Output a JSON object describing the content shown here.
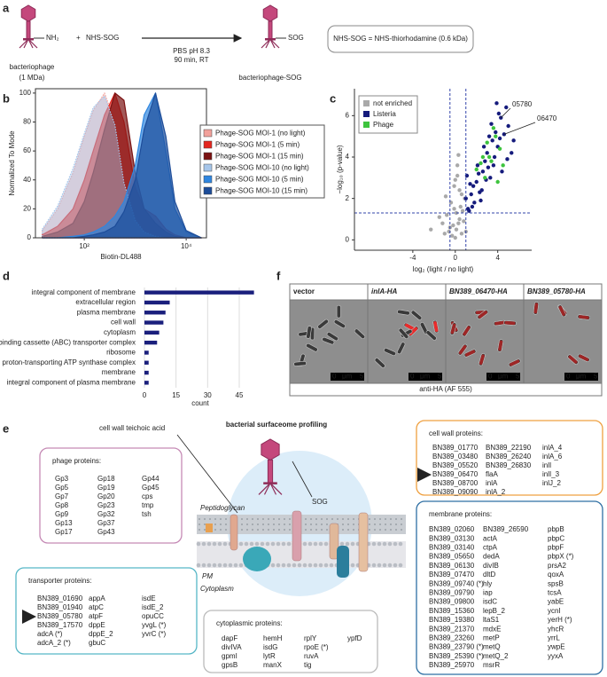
{
  "panel_a": {
    "label": "a",
    "reactant": "bacteriophage",
    "reactant_mass": "(1 MDa)",
    "amine": "NH₂",
    "plus": "+",
    "reagent": "NHS-SOG",
    "conditions": [
      "PBS pH 8.3",
      "90 min, RT"
    ],
    "product": "bacteriophage-SOG",
    "product_group": "SOG",
    "definition": "NHS-SOG  =  NHS-thiorhodamine (0.6 kDa)"
  },
  "panel_labels": {
    "b": "b",
    "c": "c",
    "d": "d",
    "e": "e",
    "f": "f"
  },
  "chart_data": [
    {
      "type": "line",
      "xlabel": "Biotin-DL488",
      "ylabel": "Normalized To Mode",
      "log_x": true,
      "legend": "right",
      "x": [
        15,
        30,
        60,
        100,
        150,
        250,
        400,
        600,
        1000,
        1500,
        2500,
        4000,
        6000,
        10000,
        20000
      ],
      "xlim": [
        11,
        25000
      ],
      "xticks": [
        {
          "value": 100,
          "label": "10²"
        },
        {
          "value": 10000,
          "label": "10⁴"
        }
      ],
      "ylim": [
        0,
        103
      ],
      "yticks": [
        0,
        20,
        40,
        60,
        80,
        100
      ],
      "series": [
        {
          "name": "Phage-SOG MOI-1 (no light)",
          "color": "#f2a19b",
          "dotted": true,
          "values": [
            5,
            20,
            45,
            70,
            88,
            100,
            80,
            40,
            12,
            4,
            1,
            0,
            0,
            0,
            0
          ]
        },
        {
          "name": "Phage-SOG MOI-1 (5 min)",
          "color": "#e4261f",
          "dotted": false,
          "values": [
            2,
            8,
            20,
            40,
            60,
            85,
            100,
            80,
            35,
            20,
            15,
            6,
            2,
            0,
            0
          ]
        },
        {
          "name": "Phage-SOG MOI-1 (15 min)",
          "color": "#7b1212",
          "dotted": false,
          "values": [
            1,
            4,
            10,
            25,
            45,
            75,
            100,
            95,
            45,
            20,
            10,
            4,
            1,
            0,
            0
          ]
        },
        {
          "name": "Phage-SOG MOI-10 (no light)",
          "color": "#a6c6ea",
          "dotted": true,
          "values": [
            6,
            22,
            48,
            72,
            90,
            98,
            78,
            38,
            12,
            4,
            1,
            0,
            0,
            0,
            0
          ]
        },
        {
          "name": "Phage-SOG MOI-10 (5 min)",
          "color": "#2f86e0",
          "dotted": false,
          "values": [
            0,
            0,
            1,
            2,
            4,
            8,
            15,
            25,
            50,
            85,
            100,
            60,
            20,
            4,
            0
          ]
        },
        {
          "name": "Phage-SOG MOI-10 (15 min)",
          "color": "#1d4d9a",
          "dotted": false,
          "values": [
            0,
            0,
            0,
            1,
            2,
            4,
            8,
            18,
            40,
            75,
            100,
            70,
            25,
            5,
            0
          ]
        }
      ]
    },
    {
      "type": "scatter",
      "xlabel": "log₂ (light / no light)",
      "ylabel": "−log₁₀ (p-value)",
      "legend": "upper left",
      "xlim": [
        -9.5,
        7.2
      ],
      "ylim": [
        -0.5,
        7.3
      ],
      "xticks": [
        -4,
        0,
        4
      ],
      "yticks": [
        0,
        2,
        4,
        6
      ],
      "thresholds_x": [
        -0.5,
        1
      ],
      "threshold_y": 1.3,
      "series": [
        {
          "name": "not enriched",
          "color": "#a9a9a9",
          "x": [
            -0.3,
            0.1,
            0.4,
            0.6,
            -0.6,
            -1.2,
            -0.8,
            0.2,
            0.5,
            0.8,
            -0.1,
            0.3,
            -0.4,
            0.0,
            0.7,
            -1.0,
            -2.3,
            -1.5,
            0.9,
            0.2,
            -0.2,
            0.4,
            0.1,
            -0.5,
            0.6,
            -0.9,
            0.3,
            -0.1,
            0.0,
            1.0
          ],
          "values": [
            0.2,
            0.5,
            1.0,
            2.2,
            0.4,
            0.8,
            1.2,
            3.1,
            1.6,
            0.9,
            2.6,
            4.1,
            1.8,
            0.1,
            1.4,
            0.3,
            0.5,
            1.1,
            2.0,
            3.6,
            0.7,
            2.4,
            1.3,
            0.6,
            0.3,
            2.1,
            0.8,
            1.5,
            2.9,
            0.4
          ]
        },
        {
          "name": "Listeria",
          "color": "#151b7c",
          "x": [
            1.2,
            1.5,
            1.8,
            2.0,
            2.2,
            2.5,
            2.8,
            3.0,
            3.3,
            3.5,
            3.8,
            4.0,
            4.3,
            4.6,
            5.0,
            5.3,
            1.0,
            1.3,
            1.7,
            2.1,
            2.4,
            2.7,
            3.1,
            3.4,
            3.7,
            4.1,
            4.4,
            4.8,
            5.5,
            1.1,
            1.6,
            2.3,
            2.9,
            3.6,
            4.2,
            4.9,
            1.4,
            2.6,
            3.2,
            3.9
          ],
          "values": [
            1.5,
            2.2,
            1.8,
            2.8,
            3.2,
            2.4,
            3.8,
            4.2,
            3.0,
            4.8,
            5.2,
            4.5,
            5.9,
            5.1,
            5.5,
            4.2,
            2.0,
            1.4,
            2.6,
            3.6,
            1.9,
            4.5,
            3.5,
            5.6,
            4.0,
            6.1,
            3.3,
            6.4,
            4.8,
            3.1,
            1.6,
            2.3,
            2.9,
            3.6,
            4.9,
            3.9,
            2.7,
            3.3,
            5.0,
            6.6
          ]
        },
        {
          "name": "Phage",
          "color": "#3ec43e",
          "x": [
            2.0,
            2.6,
            3.0,
            3.4,
            3.8,
            4.2,
            4.5,
            2.8,
            3.6,
            4.0,
            3.2,
            2.4
          ],
          "values": [
            3.4,
            4.0,
            4.7,
            3.8,
            5.0,
            4.4,
            3.6,
            3.0,
            5.4,
            2.8,
            4.0,
            3.7
          ]
        }
      ],
      "annotations": [
        {
          "text": "05780",
          "x": 4.3,
          "y": 5.9
        },
        {
          "text": "06470",
          "x": 4.6,
          "y": 5.1
        }
      ]
    },
    {
      "type": "bar",
      "orientation": "horizontal",
      "xlabel": "count",
      "color": "#1a1f7c",
      "grid": true,
      "categories": [
        "integral component of membrane",
        "extracellular region",
        "plasma membrane",
        "cell wall",
        "cytoplasm",
        "ATP-binding cassette (ABC) transporter complex",
        "ribosome",
        "proton-transporting ATP synthase complex",
        "membrane",
        "integral component of plasma membrane"
      ],
      "values": [
        52,
        12,
        10,
        9,
        7,
        6,
        2,
        2,
        2,
        2
      ],
      "xlim": [
        0,
        53
      ],
      "xticks": [
        0,
        15,
        30,
        45
      ]
    }
  ],
  "panel_f": {
    "titles": [
      "vector",
      "inlA-HA",
      "BN389_06470-HA",
      "BN389_05780-HA"
    ],
    "scale_bar": [
      "0",
      "μm",
      "5"
    ],
    "caption": "anti-HA (AF 555)"
  },
  "panel_e": {
    "title": "bacterial surfaceome profiling",
    "teichoic": "cell wall teichoic acid",
    "sog": "SOG",
    "peptidoglycan": "Peptidoglycan",
    "pm": "PM",
    "cytoplasm": "Cytoplasm",
    "boxes": [
      {
        "title": "phage proteins:",
        "columns": [
          [
            "Gp3",
            "Gp5",
            "Gp7",
            "Gp8",
            "Gp9",
            "Gp13",
            "Gp17"
          ],
          [
            "Gp18",
            "Gp19",
            "Gp20",
            "Gp23",
            "Gp32",
            "Gp37",
            "Gp43"
          ],
          [
            "Gp44",
            "Gp45",
            "cps",
            "tmp",
            "tsh"
          ]
        ]
      },
      {
        "title": "transporter proteins:",
        "columns": [
          [
            "BN389_01690",
            "BN389_01940",
            "BN389_05780",
            "BN389_17570",
            "adcA (*)",
            "adcA_2 (*)"
          ],
          [
            "appA",
            "atpC",
            "atpF",
            "dppE",
            "dppE_2",
            "gbuC"
          ],
          [
            "isdE",
            "isdE_2",
            "opuCC",
            "yvgL (*)",
            "yvrC (*)"
          ]
        ]
      },
      {
        "title": "cytoplasmic proteins:",
        "columns": [
          [
            "dapF",
            "divIVA",
            "gpmI",
            "gpsB"
          ],
          [
            "hemH",
            "isdG",
            "lytR",
            "manX"
          ],
          [
            "rplY",
            "rpoE (*)",
            "ruvA",
            "tig"
          ],
          [
            "ypfD"
          ]
        ]
      },
      {
        "title": "cell wall proteins:",
        "columns": [
          [
            "BN389_01770",
            "BN389_03480",
            "BN389_05520",
            "BN389_06470",
            "BN389_08700",
            "BN389_09090"
          ],
          [
            "BN389_22190",
            "BN389_26240",
            "BN389_26830",
            "flaA",
            "inlA",
            "inlA_2"
          ],
          [
            "inlA_4",
            "inlA_6",
            "inlI",
            "inlI_3",
            "inlJ_2"
          ]
        ]
      },
      {
        "title": "membrane proteins:",
        "columns": [
          [
            "BN389_02060",
            "BN389_03130",
            "BN389_03140",
            "BN389_05650",
            "BN389_06130",
            "BN389_07470",
            "BN389_09740 (*)",
            "BN389_09790",
            "BN389_09800",
            "BN389_15360",
            "BN389_19380",
            "BN389_21370",
            "BN389_23260",
            "BN389_23790 (*)",
            "BN389_25390 (*)",
            "BN389_25970"
          ],
          [
            "BN389_26590",
            "actA",
            "ctpA",
            "dedA",
            "divIB",
            "dltD",
            "hly",
            "iap",
            "isdC",
            "lepB_2",
            "ltaS1",
            "mdxE",
            "metP",
            "metQ",
            "metQ_2",
            "msrR"
          ],
          [
            "pbpB",
            "pbpC",
            "pbpF",
            "pbpX (*)",
            "prsA2",
            "qoxA",
            "spsB",
            "tcsA",
            "yabE",
            "ycnI",
            "yerH (*)",
            "yhcR",
            "yrrL",
            "ywpE",
            "yyxA"
          ]
        ]
      }
    ]
  }
}
